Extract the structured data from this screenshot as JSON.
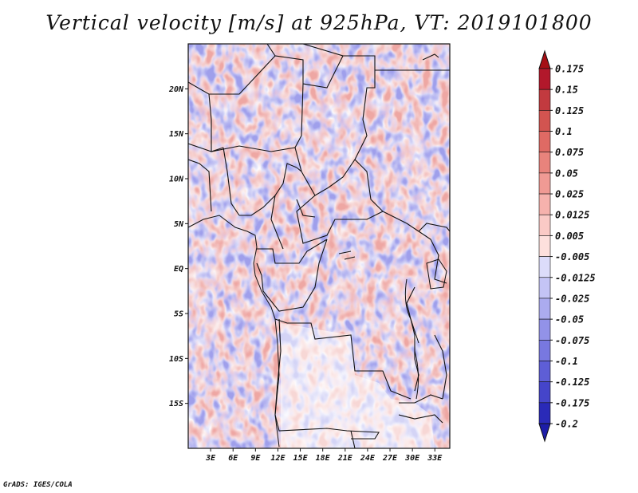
{
  "title": "Vertical velocity [m/s] at 925hPa, VT: 2019101800",
  "credit": "GrADS: IGES/COLA",
  "map": {
    "lon_range": [
      0,
      35
    ],
    "lat_range": [
      -20,
      25
    ],
    "lon_ticks": [
      {
        "value": 3,
        "label": "3E"
      },
      {
        "value": 6,
        "label": "6E"
      },
      {
        "value": 9,
        "label": "9E"
      },
      {
        "value": 12,
        "label": "12E"
      },
      {
        "value": 15,
        "label": "15E"
      },
      {
        "value": 18,
        "label": "18E"
      },
      {
        "value": 21,
        "label": "21E"
      },
      {
        "value": 24,
        "label": "24E"
      },
      {
        "value": 27,
        "label": "27E"
      },
      {
        "value": 30,
        "label": "30E"
      },
      {
        "value": 33,
        "label": "33E"
      }
    ],
    "lat_ticks": [
      {
        "value": 20,
        "label": "20N"
      },
      {
        "value": 15,
        "label": "15N"
      },
      {
        "value": 10,
        "label": "10N"
      },
      {
        "value": 5,
        "label": "5N"
      },
      {
        "value": 0,
        "label": "EQ"
      },
      {
        "value": -5,
        "label": "5S"
      },
      {
        "value": -10,
        "label": "10S"
      },
      {
        "value": -15,
        "label": "15S"
      }
    ]
  },
  "colorbar": {
    "levels": [
      {
        "label": "0.175",
        "color": "#b2182b"
      },
      {
        "label": "0.15",
        "color": "#c23a3f"
      },
      {
        "label": "0.125",
        "color": "#d25450"
      },
      {
        "label": "0.1",
        "color": "#df6a64"
      },
      {
        "label": "0.075",
        "color": "#e8837c"
      },
      {
        "label": "0.05",
        "color": "#f09a94"
      },
      {
        "label": "0.025",
        "color": "#f6b2ad"
      },
      {
        "label": "0.0125",
        "color": "#facac6"
      },
      {
        "label": "0.005",
        "color": "#fde0dd"
      },
      {
        "label": "-0.005",
        "color": "#ffffff"
      },
      {
        "label": "-0.0125",
        "color": "#dcdcfa"
      },
      {
        "label": "-0.025",
        "color": "#c4c4f5"
      },
      {
        "label": "-0.05",
        "color": "#ababef"
      },
      {
        "label": "-0.075",
        "color": "#9292e8"
      },
      {
        "label": "-0.1",
        "color": "#7878e0"
      },
      {
        "label": "-0.125",
        "color": "#5e5ed6"
      },
      {
        "label": "-0.175",
        "color": "#4545ca"
      },
      {
        "label": "-0.2",
        "color": "#2a2ab8"
      }
    ],
    "top_cap_color": "#a50f15",
    "bottom_cap_color": "#1d1da8"
  }
}
